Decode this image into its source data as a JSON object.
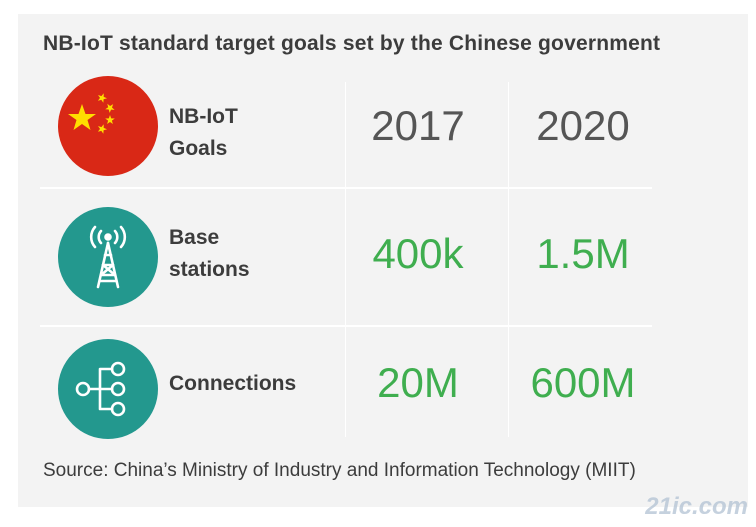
{
  "title": "NB-IoT standard target goals set by the Chinese government",
  "header_row": {
    "icon": "china-flag",
    "label_line1": "NB-IoT",
    "label_line2": "Goals",
    "year1": "2017",
    "year2": "2020"
  },
  "rows": [
    {
      "icon": "cell-tower-icon",
      "label_line1": "Base",
      "label_line2": "stations",
      "value_2017": "400k",
      "value_2020": "1.5M"
    },
    {
      "icon": "connections-icon",
      "label_line1": "Connections",
      "value_2017": "20M",
      "value_2020": "600M"
    }
  ],
  "source": "Source: China’s Ministry of Industry and Information Technology (MIIT)",
  "watermark": "21ic.com",
  "colors": {
    "background": "#f3f3f3",
    "flag_red": "#d92816",
    "flag_star": "#ffde00",
    "icon_teal": "#23988e",
    "value_green": "#3fae4f",
    "text_dark": "#3c3c3c"
  }
}
